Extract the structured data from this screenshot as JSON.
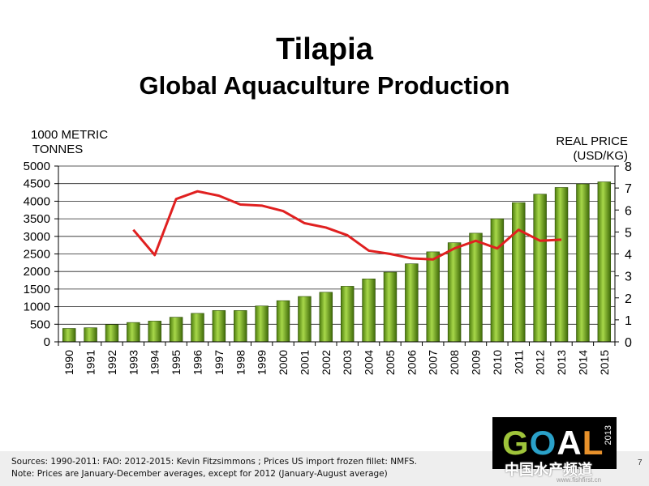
{
  "title": "Tilapia",
  "subtitle": "Global Aquaculture Production",
  "chart_data": {
    "type": "bar",
    "categories": [
      "1990",
      "1991",
      "1992",
      "1993",
      "1994",
      "1995",
      "1996",
      "1997",
      "1998",
      "1999",
      "2000",
      "2001",
      "2002",
      "2003",
      "2004",
      "2005",
      "2006",
      "2007",
      "2008",
      "2009",
      "2010",
      "2011",
      "2012",
      "2013",
      "2014",
      "2015"
    ],
    "series": [
      {
        "type": "bar",
        "axis": "left",
        "color": "#6fa81e",
        "values": [
          380,
          400,
          490,
          550,
          590,
          700,
          810,
          890,
          890,
          1020,
          1170,
          1290,
          1410,
          1580,
          1790,
          1980,
          2220,
          2560,
          2820,
          3090,
          3500,
          3960,
          4200,
          4390,
          4490,
          4550
        ]
      },
      {
        "type": "line",
        "axis": "right",
        "color": "#e02020",
        "values": [
          null,
          null,
          null,
          5.1,
          3.95,
          6.5,
          6.85,
          6.65,
          6.25,
          6.2,
          5.95,
          5.4,
          5.2,
          4.85,
          4.15,
          4.0,
          3.8,
          3.75,
          4.25,
          4.6,
          4.25,
          5.1,
          4.6,
          4.65,
          null,
          null
        ]
      }
    ],
    "ylabel_left": "1000 METRIC\nTONNES",
    "ylabel_right": "REAL PRICE\n(USD/KG)",
    "ylim_left": [
      0,
      5000
    ],
    "ylim_right": [
      0,
      8
    ],
    "yticks_left": [
      0,
      500,
      1000,
      1500,
      2000,
      2500,
      3000,
      3500,
      4000,
      4500,
      5000
    ],
    "yticks_right": [
      0,
      1,
      2,
      3,
      4,
      5,
      6,
      7,
      8
    ],
    "grid": true
  },
  "sources_line1": "Sources: 1990-2011: FAO: 2012-2015: Kevin Fitzsimmons ; Prices US import frozen  fillet: NMFS.",
  "sources_line2": "Note: Prices are January-December averages, except for 2012 (January-August average)",
  "logo": {
    "letters": [
      "G",
      "O",
      "A",
      "L"
    ],
    "year": "2013"
  },
  "watermark": "中国水产频道",
  "watermark_url": "www.fishfirst.cn",
  "page_number": "7"
}
